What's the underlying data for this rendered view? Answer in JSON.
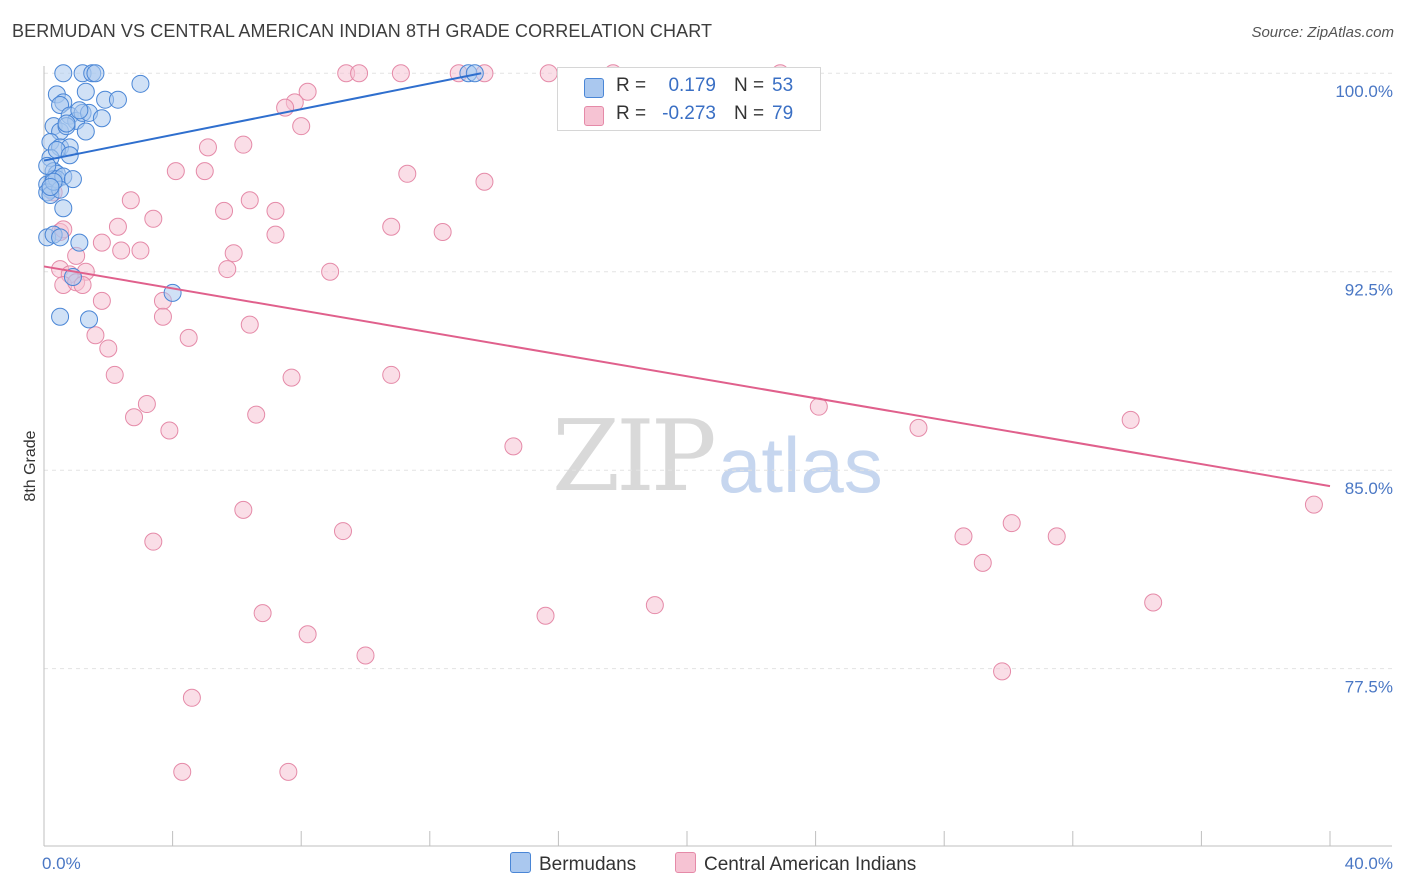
{
  "title": "BERMUDAN VS CENTRAL AMERICAN INDIAN 8TH GRADE CORRELATION CHART",
  "source": "Source: ZipAtlas.com",
  "watermark": {
    "zip": "ZIP",
    "atlas": "atlas"
  },
  "legend": {
    "rows": [
      {
        "r_label": "R =",
        "r_value": "0.179",
        "n_label": "N =",
        "n_value": "53"
      },
      {
        "r_label": "R =",
        "r_value": "-0.273",
        "n_label": "N =",
        "n_value": "79"
      }
    ]
  },
  "bottom_legend": {
    "bermudans": "Bermudans",
    "central": "Central American Indians"
  },
  "colors": {
    "blue_fill": "#aac8ef",
    "blue_stroke": "#4a86d6",
    "blue_line": "#2f6fce",
    "pink_fill": "#f6c3d3",
    "pink_stroke": "#e58aa8",
    "pink_line": "#e0608c",
    "tick_text": "#4a77c4",
    "grid": "#e3e3e3"
  },
  "chart_data": {
    "type": "scatter",
    "title": "BERMUDAN VS CENTRAL AMERICAN INDIAN 8TH GRADE CORRELATION CHART",
    "xlabel": "",
    "ylabel": "8th Grade",
    "xlim": [
      0,
      40
    ],
    "ylim": [
      70.8,
      100.5
    ],
    "x_tick_labels": [
      {
        "value": 0,
        "label": "0.0%"
      },
      {
        "value": 40,
        "label": "40.0%"
      }
    ],
    "y_ticks": [
      {
        "value": 100.0,
        "label": "100.0%"
      },
      {
        "value": 92.5,
        "label": "92.5%"
      },
      {
        "value": 85.0,
        "label": "85.0%"
      },
      {
        "value": 77.5,
        "label": "77.5%"
      }
    ],
    "series": [
      {
        "name": "Bermudans",
        "R": 0.179,
        "N": 53,
        "trend": {
          "x": [
            0,
            13.6
          ],
          "y": [
            96.7,
            100.0
          ]
        },
        "points": [
          [
            0.6,
            100.0
          ],
          [
            1.2,
            100.0
          ],
          [
            1.5,
            100.0
          ],
          [
            1.6,
            100.0
          ],
          [
            3.0,
            99.6
          ],
          [
            0.4,
            99.2
          ],
          [
            0.6,
            98.9
          ],
          [
            0.5,
            98.8
          ],
          [
            1.3,
            99.3
          ],
          [
            1.9,
            99.0
          ],
          [
            2.3,
            99.0
          ],
          [
            0.8,
            98.4
          ],
          [
            1.0,
            98.2
          ],
          [
            1.2,
            98.5
          ],
          [
            1.4,
            98.5
          ],
          [
            1.8,
            98.3
          ],
          [
            0.3,
            98.0
          ],
          [
            0.5,
            97.8
          ],
          [
            0.7,
            98.0
          ],
          [
            1.3,
            97.8
          ],
          [
            0.2,
            97.4
          ],
          [
            0.5,
            97.2
          ],
          [
            0.8,
            97.2
          ],
          [
            0.2,
            96.8
          ],
          [
            0.3,
            96.3
          ],
          [
            0.4,
            96.2
          ],
          [
            0.1,
            95.8
          ],
          [
            0.2,
            95.6
          ],
          [
            0.3,
            96.0
          ],
          [
            0.4,
            96.0
          ],
          [
            0.6,
            96.1
          ],
          [
            0.9,
            96.0
          ],
          [
            0.1,
            95.5
          ],
          [
            0.2,
            95.4
          ],
          [
            0.5,
            95.6
          ],
          [
            0.6,
            94.9
          ],
          [
            0.1,
            93.8
          ],
          [
            0.3,
            93.9
          ],
          [
            0.5,
            93.8
          ],
          [
            1.1,
            93.6
          ],
          [
            0.9,
            92.3
          ],
          [
            4.0,
            91.7
          ],
          [
            0.5,
            90.8
          ],
          [
            1.4,
            90.7
          ],
          [
            13.2,
            100.0
          ],
          [
            13.4,
            100.0
          ],
          [
            0.1,
            96.5
          ],
          [
            0.3,
            95.9
          ],
          [
            0.7,
            98.1
          ],
          [
            1.1,
            98.6
          ],
          [
            0.2,
            95.7
          ],
          [
            0.4,
            97.1
          ],
          [
            0.8,
            96.9
          ]
        ]
      },
      {
        "name": "Central American Indians",
        "R": -0.273,
        "N": 79,
        "trend": {
          "x": [
            0,
            40
          ],
          "y": [
            92.7,
            84.4
          ]
        },
        "points": [
          [
            9.4,
            100.0
          ],
          [
            9.8,
            100.0
          ],
          [
            11.1,
            100.0
          ],
          [
            12.9,
            100.0
          ],
          [
            13.7,
            100.0
          ],
          [
            15.7,
            100.0
          ],
          [
            17.7,
            100.0
          ],
          [
            22.9,
            100.0
          ],
          [
            8.2,
            99.3
          ],
          [
            7.8,
            98.9
          ],
          [
            7.5,
            98.7
          ],
          [
            8.0,
            98.0
          ],
          [
            5.1,
            97.2
          ],
          [
            6.2,
            97.3
          ],
          [
            4.1,
            96.3
          ],
          [
            5.0,
            96.3
          ],
          [
            11.3,
            96.2
          ],
          [
            13.7,
            95.9
          ],
          [
            2.7,
            95.2
          ],
          [
            6.4,
            95.2
          ],
          [
            7.2,
            94.8
          ],
          [
            5.6,
            94.8
          ],
          [
            3.4,
            94.5
          ],
          [
            1.8,
            93.6
          ],
          [
            2.3,
            94.2
          ],
          [
            7.2,
            93.9
          ],
          [
            10.8,
            94.2
          ],
          [
            12.4,
            94.0
          ],
          [
            0.5,
            94.0
          ],
          [
            0.6,
            94.1
          ],
          [
            1.0,
            93.1
          ],
          [
            2.4,
            93.3
          ],
          [
            3.0,
            93.3
          ],
          [
            5.9,
            93.2
          ],
          [
            0.5,
            92.6
          ],
          [
            0.8,
            92.4
          ],
          [
            1.3,
            92.5
          ],
          [
            5.7,
            92.6
          ],
          [
            8.9,
            92.5
          ],
          [
            0.6,
            92.0
          ],
          [
            1.0,
            92.1
          ],
          [
            1.2,
            92.0
          ],
          [
            1.8,
            91.4
          ],
          [
            3.7,
            91.4
          ],
          [
            3.7,
            90.8
          ],
          [
            6.4,
            90.5
          ],
          [
            1.6,
            90.1
          ],
          [
            2.0,
            89.6
          ],
          [
            4.5,
            90.0
          ],
          [
            2.2,
            88.6
          ],
          [
            3.2,
            87.5
          ],
          [
            7.7,
            88.5
          ],
          [
            10.8,
            88.6
          ],
          [
            2.8,
            87.0
          ],
          [
            3.9,
            86.5
          ],
          [
            6.6,
            87.1
          ],
          [
            24.1,
            87.4
          ],
          [
            27.2,
            86.6
          ],
          [
            33.8,
            86.9
          ],
          [
            14.6,
            85.9
          ],
          [
            6.2,
            83.5
          ],
          [
            3.4,
            82.3
          ],
          [
            9.3,
            82.7
          ],
          [
            28.6,
            82.5
          ],
          [
            29.2,
            81.5
          ],
          [
            30.1,
            83.0
          ],
          [
            31.5,
            82.5
          ],
          [
            39.5,
            83.7
          ],
          [
            6.8,
            79.6
          ],
          [
            8.2,
            78.8
          ],
          [
            15.6,
            79.5
          ],
          [
            19.0,
            79.9
          ],
          [
            34.5,
            80.0
          ],
          [
            10.0,
            78.0
          ],
          [
            29.8,
            77.4
          ],
          [
            4.6,
            76.4
          ],
          [
            4.3,
            73.6
          ],
          [
            7.6,
            73.6
          ],
          [
            0.3,
            95.5
          ]
        ]
      }
    ]
  }
}
